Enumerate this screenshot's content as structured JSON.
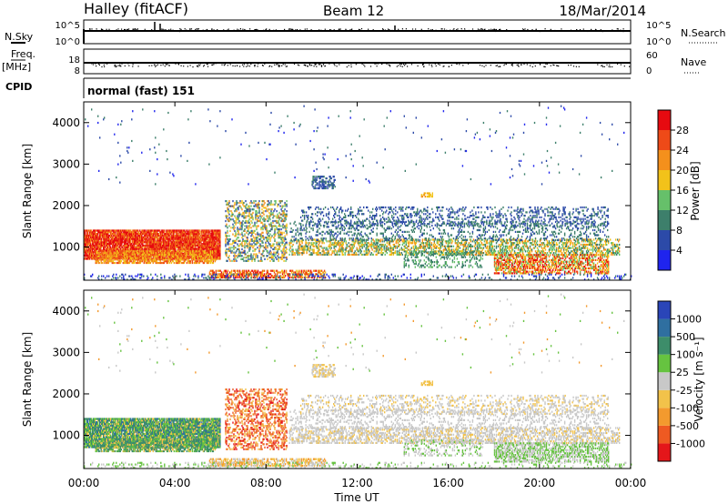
{
  "header": {
    "station": "Halley (fitACF)",
    "beam": "Beam 12",
    "date": "18/Mar/2014"
  },
  "top_panels": {
    "nsky_label": "N.Sky",
    "nsky_ticks": [
      "10^5",
      "10^0"
    ],
    "nsearch_label": "N.Search",
    "nsearch_ticks": [
      "10^5",
      "10^0"
    ],
    "freq_label": "Freq.",
    "freq_unit": "[MHz]",
    "freq_ticks": [
      "18",
      "8"
    ],
    "nave_label": "Nave",
    "nave_ticks": [
      "60",
      "0"
    ],
    "cpid_label": "CPID",
    "cpid_value": "normal (fast) 151"
  },
  "chart_data": [
    {
      "type": "heatmap",
      "name": "power",
      "ylabel": "Slant Range [km]",
      "ylim": [
        200,
        4500
      ],
      "yticks": [
        "1000",
        "2000",
        "3000",
        "4000"
      ],
      "colorbar_label": "Power [dB]",
      "colorbar_ticks": [
        "28",
        "24",
        "20",
        "16",
        "12",
        "8",
        "4"
      ],
      "colors": [
        "#1f24ee",
        "#2c4aa8",
        "#3d7f6b",
        "#66c06a",
        "#f2c21a",
        "#f4901c",
        "#ee4a18",
        "#e60a10"
      ]
    },
    {
      "type": "heatmap",
      "name": "velocity",
      "ylabel": "Slant Range [km]",
      "ylim": [
        200,
        4500
      ],
      "yticks": [
        "1000",
        "2000",
        "3000",
        "4000"
      ],
      "colorbar_label": "Velocity [m s⁻¹]",
      "colorbar_ticks": [
        "1000",
        "500",
        "100",
        "25",
        "-25",
        "-100",
        "-500",
        "-1000"
      ],
      "colors": [
        "#2a45b8",
        "#2f6fa0",
        "#3d8d6a",
        "#66c340",
        "#c8c8c8",
        "#f2c24a",
        "#f39a2e",
        "#ee5a22",
        "#e4161a"
      ]
    }
  ],
  "xaxis": {
    "xlim": [
      "00:00",
      "24:00"
    ],
    "xticks": [
      "00:00",
      "04:00",
      "08:00",
      "12:00",
      "16:00",
      "20:00",
      "00:00"
    ],
    "xlabel": "Time UT"
  }
}
